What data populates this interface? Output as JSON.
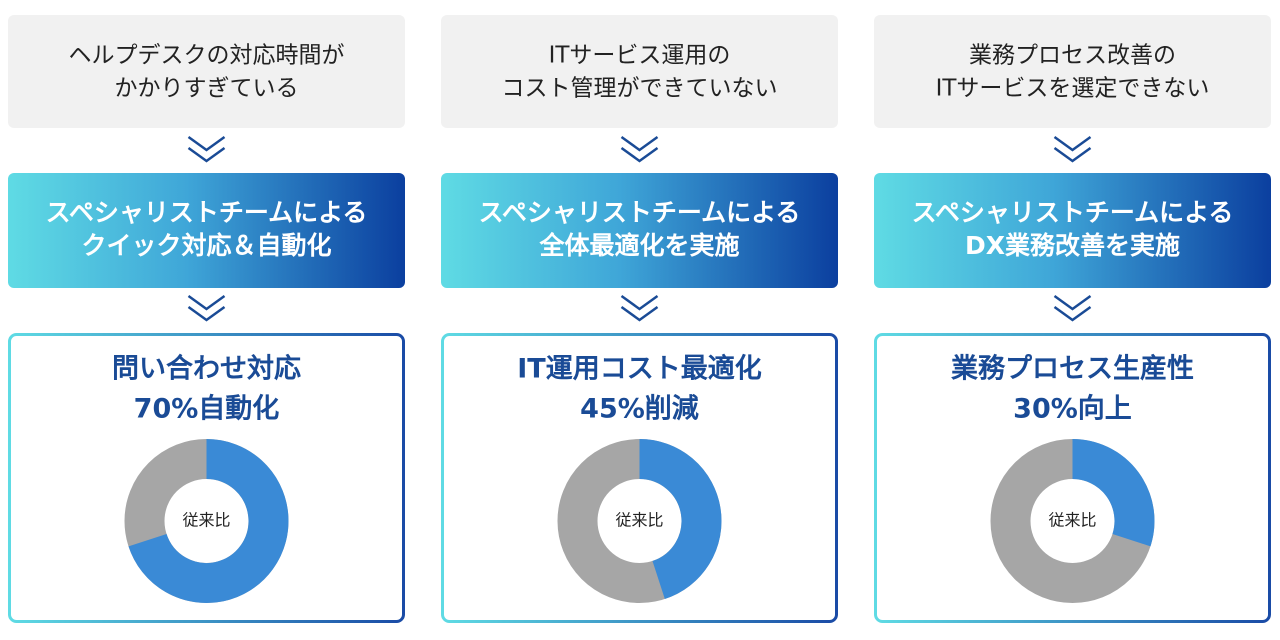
{
  "columns": [
    {
      "problem": [
        "ヘルプデスクの対応時間が",
        "かかりすぎている"
      ],
      "solution": [
        "スペシャリストチームによる",
        "クイック対応＆自動化"
      ],
      "result": [
        "問い合わせ対応",
        "70%自動化"
      ],
      "donut": {
        "value": 70,
        "label": "従来比"
      }
    },
    {
      "problem": [
        "ITサービス運用の",
        "コスト管理ができていない"
      ],
      "solution": [
        "スペシャリストチームによる",
        "全体最適化を実施"
      ],
      "result": [
        "IT運用コスト最適化",
        "45%削減"
      ],
      "donut": {
        "value": 45,
        "label": "従来比"
      }
    },
    {
      "problem": [
        "業務プロセス改善の",
        "ITサービスを選定できない"
      ],
      "solution": [
        "スペシャリストチームによる",
        "DX業務改善を実施"
      ],
      "result": [
        "業務プロセス生産性",
        "30%向上"
      ],
      "donut": {
        "value": 30,
        "label": "従来比"
      }
    }
  ]
}
